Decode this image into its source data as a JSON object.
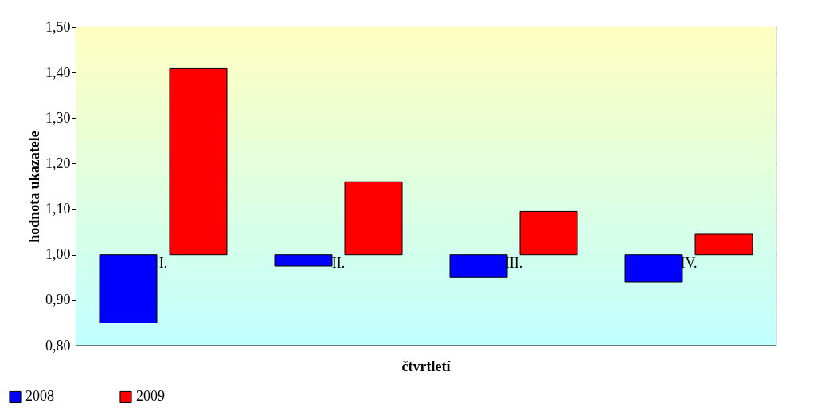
{
  "chart_data": {
    "type": "bar",
    "xlabel": "čtvrtletí",
    "ylabel": "hodnota ukazatele",
    "categories": [
      "I.",
      "II.",
      "III.",
      "IV."
    ],
    "series": [
      {
        "name": "2008",
        "color": "#0000ff",
        "base": [
          1.0,
          1.0,
          1.0,
          1.0
        ],
        "values": [
          -0.15,
          -0.025,
          -0.05,
          -0.06
        ]
      },
      {
        "name": "2009",
        "color": "#ff0000",
        "base": [
          1.0,
          1.0,
          1.0,
          1.0
        ],
        "values": [
          0.41,
          0.16,
          0.095,
          0.045
        ]
      }
    ],
    "ylim": [
      0.8,
      1.5
    ],
    "yticks": [
      {
        "value": 0.8,
        "label": "0,80"
      },
      {
        "value": 0.9,
        "label": "0,90"
      },
      {
        "value": 1.0,
        "label": "1,00"
      },
      {
        "value": 1.1,
        "label": "1,10"
      },
      {
        "value": 1.2,
        "label": "1,20"
      },
      {
        "value": 1.3,
        "label": "1,30"
      },
      {
        "value": 1.4,
        "label": "1,40"
      },
      {
        "value": 1.5,
        "label": "1,50"
      }
    ],
    "grid": "y",
    "legend": "bottom left"
  }
}
